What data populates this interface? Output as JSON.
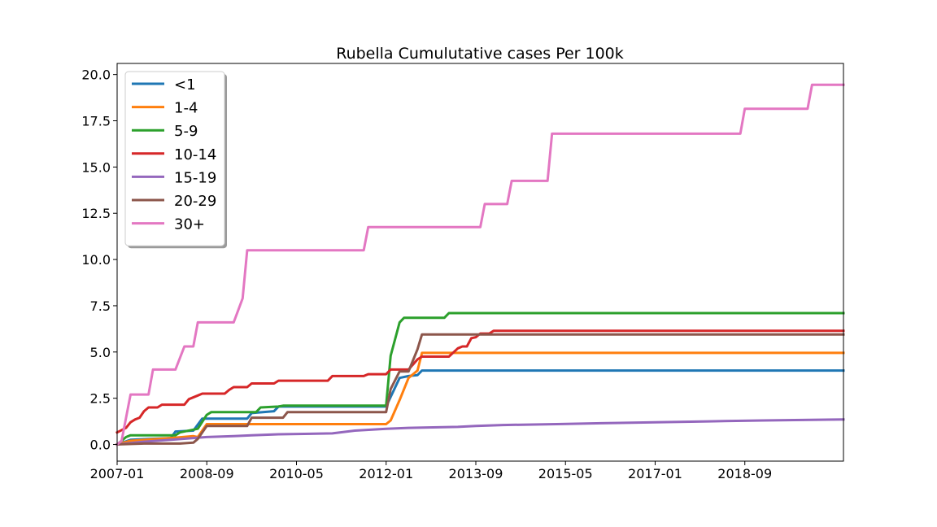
{
  "chart_data": {
    "type": "line",
    "title": "Rubella Cumulutative cases Per 100k",
    "xlabel": "",
    "ylabel": "",
    "x_range": [
      "2007-01",
      "2020-07"
    ],
    "ylim": [
      -0.9,
      20.6
    ],
    "x_ticks": [
      "2007-01",
      "2008-09",
      "2010-05",
      "2012-01",
      "2013-09",
      "2015-05",
      "2017-01",
      "2018-09"
    ],
    "y_ticks": [
      "0.0",
      "2.5",
      "5.0",
      "7.5",
      "10.0",
      "12.5",
      "15.0",
      "17.5",
      "20.0"
    ],
    "grid": false,
    "legend_position": "top-left",
    "series": [
      {
        "name": "<1",
        "color": "#1f77b4",
        "points": [
          [
            "2007-01",
            0
          ],
          [
            "2007-04",
            0.25
          ],
          [
            "2007-08",
            0.3
          ],
          [
            "2008-01",
            0.35
          ],
          [
            "2008-02",
            0.7
          ],
          [
            "2008-06",
            0.75
          ],
          [
            "2008-08",
            1.4
          ],
          [
            "2009-06",
            1.4
          ],
          [
            "2009-07",
            1.7
          ],
          [
            "2009-12",
            1.8
          ],
          [
            "2010-01",
            2.05
          ],
          [
            "2012-01",
            2.05
          ],
          [
            "2012-04",
            3.6
          ],
          [
            "2012-06",
            3.7
          ],
          [
            "2012-08",
            3.75
          ],
          [
            "2012-09",
            4.0
          ],
          [
            "2020-07",
            4.0
          ]
        ]
      },
      {
        "name": "1-4",
        "color": "#ff7f0e",
        "points": [
          [
            "2007-01",
            0
          ],
          [
            "2007-04",
            0.2
          ],
          [
            "2007-10",
            0.3
          ],
          [
            "2008-01",
            0.35
          ],
          [
            "2008-06",
            0.45
          ],
          [
            "2008-07",
            0.4
          ],
          [
            "2008-09",
            1.1
          ],
          [
            "2012-01",
            1.1
          ],
          [
            "2012-02",
            1.3
          ],
          [
            "2012-04",
            2.4
          ],
          [
            "2012-06",
            3.6
          ],
          [
            "2012-08",
            4.0
          ],
          [
            "2012-09",
            4.95
          ],
          [
            "2020-07",
            4.95
          ]
        ]
      },
      {
        "name": "5-9",
        "color": "#2ca02c",
        "points": [
          [
            "2007-01",
            0
          ],
          [
            "2007-03",
            0.4
          ],
          [
            "2007-04",
            0.5
          ],
          [
            "2008-02",
            0.5
          ],
          [
            "2008-03",
            0.65
          ],
          [
            "2008-07",
            0.85
          ],
          [
            "2008-09",
            1.6
          ],
          [
            "2008-10",
            1.75
          ],
          [
            "2009-08",
            1.75
          ],
          [
            "2009-09",
            2.0
          ],
          [
            "2010-01",
            2.05
          ],
          [
            "2010-02",
            2.1
          ],
          [
            "2012-01",
            2.1
          ],
          [
            "2012-02",
            4.8
          ],
          [
            "2012-04",
            6.6
          ],
          [
            "2012-05",
            6.85
          ],
          [
            "2013-02",
            6.85
          ],
          [
            "2013-03",
            7.1
          ],
          [
            "2020-07",
            7.1
          ]
        ]
      },
      {
        "name": "10-14",
        "color": "#d62728",
        "points": [
          [
            "2007-01",
            0.65
          ],
          [
            "2007-03",
            0.9
          ],
          [
            "2007-04",
            1.2
          ],
          [
            "2007-05",
            1.35
          ],
          [
            "2007-06",
            1.45
          ],
          [
            "2007-07",
            1.8
          ],
          [
            "2007-08",
            2.0
          ],
          [
            "2007-10",
            2.0
          ],
          [
            "2007-11",
            2.15
          ],
          [
            "2008-04",
            2.15
          ],
          [
            "2008-05",
            2.45
          ],
          [
            "2008-07",
            2.65
          ],
          [
            "2008-08",
            2.75
          ],
          [
            "2009-01",
            2.75
          ],
          [
            "2009-02",
            2.95
          ],
          [
            "2009-03",
            3.1
          ],
          [
            "2009-06",
            3.1
          ],
          [
            "2009-07",
            3.3
          ],
          [
            "2009-12",
            3.3
          ],
          [
            "2010-01",
            3.45
          ],
          [
            "2010-12",
            3.45
          ],
          [
            "2011-01",
            3.7
          ],
          [
            "2011-08",
            3.7
          ],
          [
            "2011-09",
            3.8
          ],
          [
            "2012-01",
            3.8
          ],
          [
            "2012-02",
            4.05
          ],
          [
            "2012-06",
            4.05
          ],
          [
            "2012-08",
            4.6
          ],
          [
            "2012-09",
            4.75
          ],
          [
            "2013-03",
            4.75
          ],
          [
            "2013-05",
            5.2
          ],
          [
            "2013-06",
            5.3
          ],
          [
            "2013-07",
            5.3
          ],
          [
            "2013-08",
            5.75
          ],
          [
            "2013-09",
            5.8
          ],
          [
            "2013-10",
            6.0
          ],
          [
            "2013-12",
            6.0
          ],
          [
            "2014-01",
            6.15
          ],
          [
            "2020-07",
            6.15
          ]
        ]
      },
      {
        "name": "15-19",
        "color": "#9467bd",
        "points": [
          [
            "2007-01",
            0
          ],
          [
            "2007-07",
            0.15
          ],
          [
            "2008-01",
            0.25
          ],
          [
            "2008-09",
            0.4
          ],
          [
            "2009-03",
            0.45
          ],
          [
            "2009-07",
            0.5
          ],
          [
            "2010-01",
            0.55
          ],
          [
            "2011-01",
            0.6
          ],
          [
            "2011-06",
            0.75
          ],
          [
            "2012-01",
            0.85
          ],
          [
            "2012-06",
            0.9
          ],
          [
            "2013-05",
            0.95
          ],
          [
            "2013-09",
            1.0
          ],
          [
            "2014-03",
            1.05
          ],
          [
            "2015-03",
            1.1
          ],
          [
            "2016-01",
            1.15
          ],
          [
            "2017-01",
            1.2
          ],
          [
            "2018-01",
            1.25
          ],
          [
            "2019-01",
            1.3
          ],
          [
            "2020-07",
            1.35
          ]
        ]
      },
      {
        "name": "20-29",
        "color": "#8c564b",
        "points": [
          [
            "2007-01",
            0
          ],
          [
            "2007-07",
            0.05
          ],
          [
            "2008-03",
            0.05
          ],
          [
            "2008-06",
            0.1
          ],
          [
            "2008-07",
            0.3
          ],
          [
            "2008-09",
            1.0
          ],
          [
            "2009-06",
            1.0
          ],
          [
            "2009-07",
            1.45
          ],
          [
            "2010-02",
            1.45
          ],
          [
            "2010-03",
            1.75
          ],
          [
            "2012-01",
            1.75
          ],
          [
            "2012-02",
            3.0
          ],
          [
            "2012-04",
            3.95
          ],
          [
            "2012-06",
            3.95
          ],
          [
            "2012-08",
            5.15
          ],
          [
            "2012-09",
            5.95
          ],
          [
            "2020-07",
            5.95
          ]
        ]
      },
      {
        "name": "30+",
        "color": "#e377c2",
        "points": [
          [
            "2007-01",
            0
          ],
          [
            "2007-02",
            0.2
          ],
          [
            "2007-04",
            2.7
          ],
          [
            "2007-06",
            2.7
          ],
          [
            "2007-08",
            2.7
          ],
          [
            "2007-09",
            4.05
          ],
          [
            "2008-02",
            4.05
          ],
          [
            "2008-04",
            5.3
          ],
          [
            "2008-06",
            5.3
          ],
          [
            "2008-07",
            6.6
          ],
          [
            "2008-09",
            6.6
          ],
          [
            "2009-03",
            6.6
          ],
          [
            "2009-05",
            7.9
          ],
          [
            "2009-06",
            10.5
          ],
          [
            "2011-08",
            10.5
          ],
          [
            "2011-09",
            11.75
          ],
          [
            "2013-10",
            11.75
          ],
          [
            "2013-11",
            13.0
          ],
          [
            "2014-04",
            13.0
          ],
          [
            "2014-05",
            14.25
          ],
          [
            "2015-01",
            14.25
          ],
          [
            "2015-02",
            16.8
          ],
          [
            "2018-08",
            16.8
          ],
          [
            "2018-09",
            18.15
          ],
          [
            "2019-11",
            18.15
          ],
          [
            "2019-12",
            19.45
          ],
          [
            "2020-07",
            19.45
          ]
        ]
      }
    ]
  }
}
